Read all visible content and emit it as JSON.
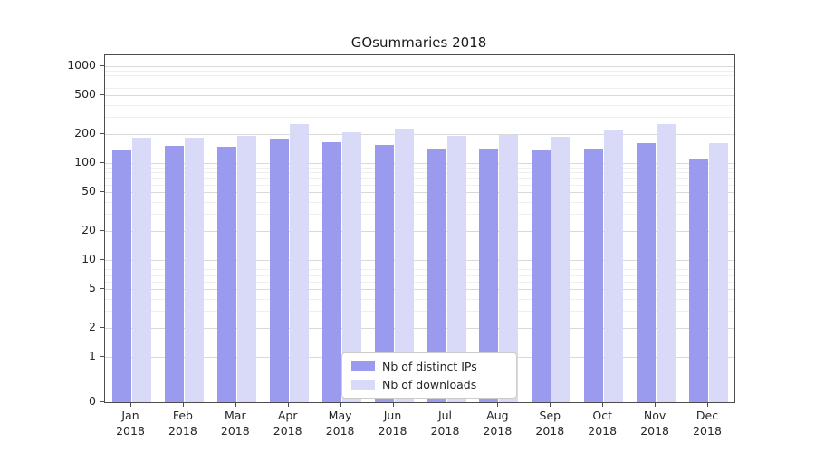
{
  "title": "GOsummaries 2018",
  "legend": {
    "items": [
      {
        "label": "Nb of distinct IPs",
        "color": "#9a9aee"
      },
      {
        "label": "Nb of downloads",
        "color": "#d9d9f8"
      }
    ]
  },
  "chart_data": {
    "type": "bar",
    "title": "GOsummaries 2018",
    "yscale": "log",
    "grid": true,
    "legend_position": "bottom-center",
    "y_ticks": [
      0,
      1,
      2,
      5,
      10,
      20,
      50,
      100,
      200,
      500,
      1000
    ],
    "ylim": [
      0,
      1000
    ],
    "categories": [
      "Jan 2018",
      "Feb 2018",
      "Mar 2018",
      "Apr 2018",
      "May 2018",
      "Jun 2018",
      "Jul 2018",
      "Aug 2018",
      "Sep 2018",
      "Oct 2018",
      "Nov 2018",
      "Dec 2018"
    ],
    "series": [
      {
        "name": "Nb of distinct IPs",
        "color": "#9a9aee",
        "values": [
          135,
          150,
          147,
          180,
          163,
          155,
          141,
          141,
          136,
          138,
          162,
          112
        ]
      },
      {
        "name": "Nb of downloads",
        "color": "#d9d9f8",
        "values": [
          181,
          183,
          190,
          252,
          209,
          226,
          189,
          196,
          188,
          215,
          251,
          162
        ]
      }
    ]
  }
}
